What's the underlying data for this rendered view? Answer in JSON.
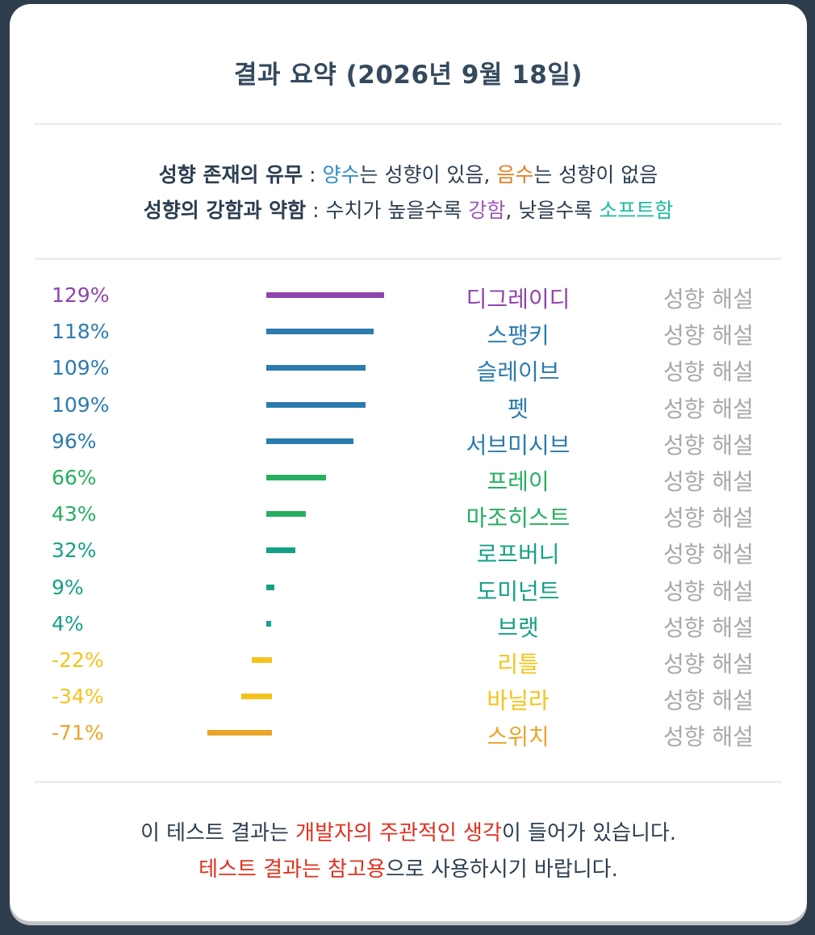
{
  "header": {
    "title": "결과 요약 (2026년 9월 18일)"
  },
  "legend": {
    "line1": {
      "label": "성향 존재의 유무",
      "sep": " : ",
      "positive": "양수",
      "mid1": "는 성향이 있음, ",
      "negative": "음수",
      "mid2": "는 성향이 없음"
    },
    "line2": {
      "label": "성향의 강함과 약함",
      "sep": " : 수치가 높을수록 ",
      "strong": "강함",
      "mid": ", 낮을수록 ",
      "soft": "소프트함"
    }
  },
  "colors": {
    "purple": "#8e44ad",
    "blue": "#2b7bae",
    "green": "#27ae60",
    "teal": "#16a085",
    "yellow": "#f4c31b",
    "amber": "#eba52a",
    "label_gray": "#a8a8a8"
  },
  "chart_data": {
    "type": "bar",
    "orientation": "horizontal",
    "categories": [
      "디그레이디",
      "스팽키",
      "슬레이브",
      "펫",
      "서브미시브",
      "프레이",
      "마조히스트",
      "로프버니",
      "도미넌트",
      "브랫",
      "리틀",
      "바닐라",
      "스위치"
    ],
    "values": [
      129,
      118,
      109,
      109,
      96,
      66,
      43,
      32,
      9,
      4,
      -22,
      -34,
      -71
    ],
    "value_labels": [
      "129%",
      "118%",
      "109%",
      "109%",
      "96%",
      "66%",
      "43%",
      "32%",
      "9%",
      "4%",
      "-22%",
      "-34%",
      "-71%"
    ],
    "bar_colors": [
      "#8e44ad",
      "#2b7bae",
      "#2b7bae",
      "#2b7bae",
      "#2b7bae",
      "#27ae60",
      "#27ae60",
      "#16a085",
      "#16a085",
      "#16a085",
      "#f4c31b",
      "#f4c31b",
      "#eba52a"
    ],
    "action_label": "성향 해설",
    "grid": false
  },
  "footer": {
    "line1": {
      "pre": "이 테스트 결과는 ",
      "highlight": "개발자의 주관적인 생각",
      "post": "이 들어가 있습니다."
    },
    "line2": {
      "highlight": "테스트 결과는 참고용",
      "post": "으로 사용하시기 바랍니다."
    }
  }
}
